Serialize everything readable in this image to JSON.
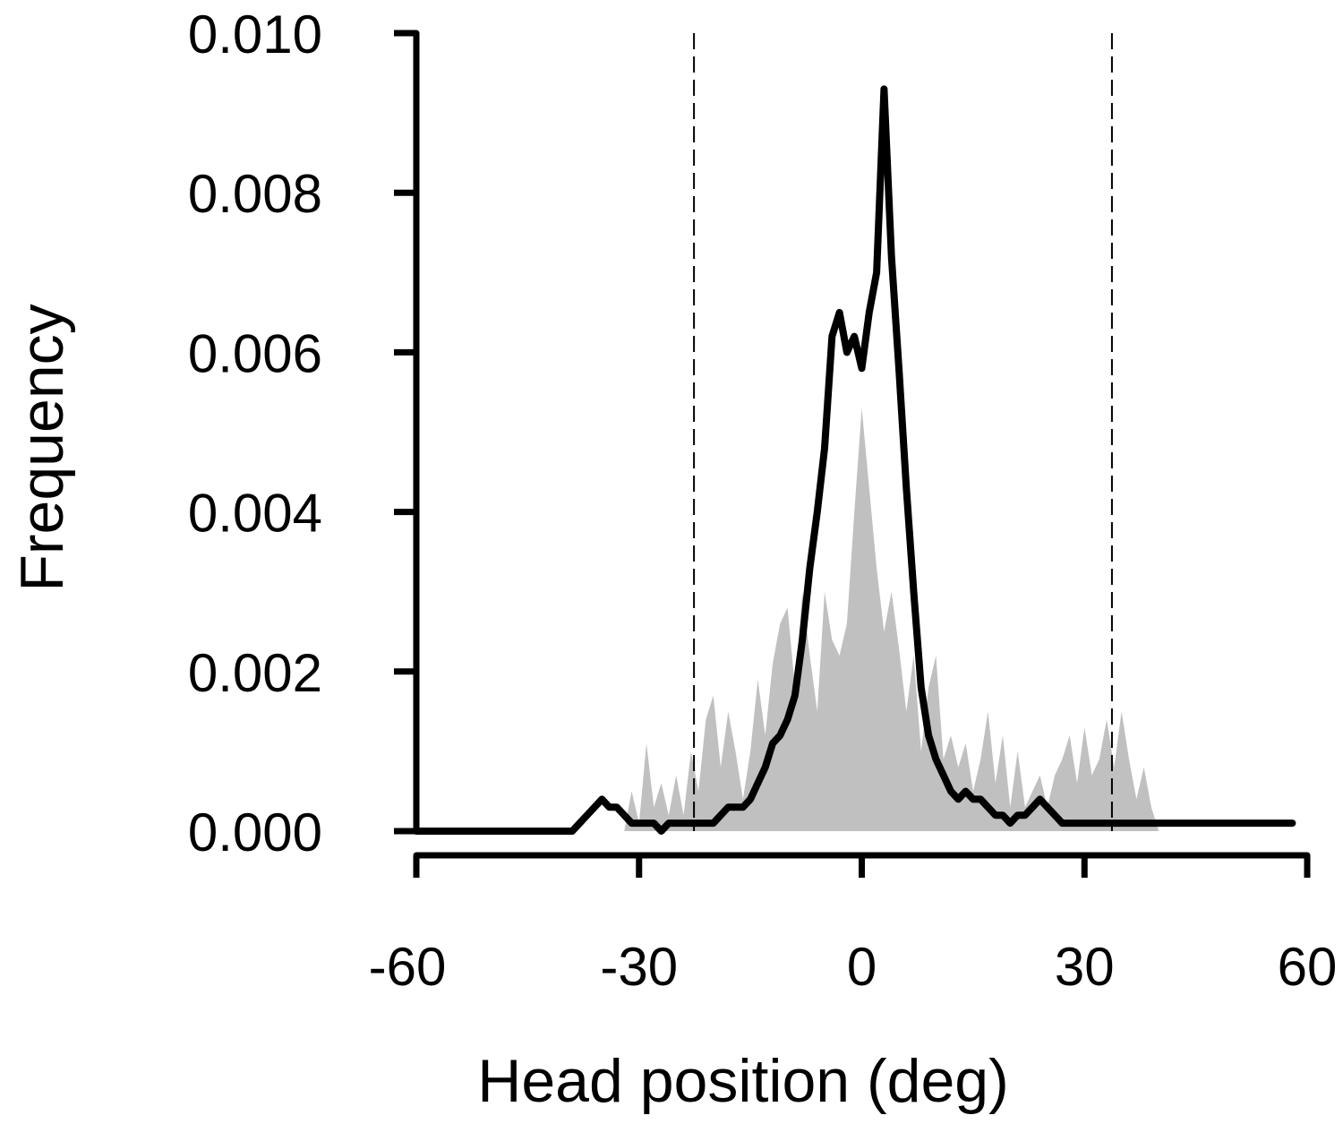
{
  "chart_data": {
    "type": "line",
    "xlabel": "Head position (deg)",
    "ylabel": "Frequency",
    "xlim": [
      -60,
      60
    ],
    "xticks": [
      -60,
      -30,
      0,
      30,
      60
    ],
    "ylim": [
      0,
      0.01
    ],
    "yticks": [
      {
        "value": 0,
        "label": "0.000"
      },
      {
        "value": 0.002,
        "label": "0.002"
      },
      {
        "value": 0.004,
        "label": "0.004"
      },
      {
        "value": 0.006,
        "label": "0.006"
      },
      {
        "value": 0.008,
        "label": "0.008"
      },
      {
        "value": 0.01,
        "label": "0.010"
      }
    ],
    "reference_lines": [
      -22.6,
      33.7
    ],
    "series": [
      {
        "kind": "area",
        "color": "#c0c0c0",
        "x": [
          -32,
          -31,
          -30,
          -29,
          -28,
          -27,
          -26,
          -25,
          -24,
          -23,
          -22,
          -21,
          -20,
          -19,
          -18,
          -17,
          -16,
          -15,
          -14,
          -13,
          -12,
          -11,
          -10,
          -9,
          -8,
          -7,
          -6,
          -5,
          -4,
          -3,
          -2,
          -1,
          0,
          1,
          2,
          3,
          4,
          5,
          6,
          7,
          8,
          9,
          10,
          11,
          12,
          13,
          14,
          15,
          16,
          17,
          18,
          19,
          20,
          21,
          22,
          23,
          24,
          25,
          26,
          27,
          28,
          29,
          30,
          31,
          32,
          33,
          34,
          35,
          36,
          37,
          38,
          39,
          40
        ],
        "values": [
          0,
          0.0005,
          0.0001,
          0.0011,
          0.0003,
          0.0006,
          0.0002,
          0.0007,
          0.0002,
          0.001,
          0.0005,
          0.0014,
          0.0017,
          0.0008,
          0.0015,
          0.001,
          0.0004,
          0.001,
          0.0019,
          0.0012,
          0.0021,
          0.0026,
          0.0028,
          0.0018,
          0.003,
          0.0022,
          0.0015,
          0.003,
          0.0024,
          0.0022,
          0.0026,
          0.004,
          0.0053,
          0.0043,
          0.0033,
          0.0025,
          0.003,
          0.0023,
          0.0015,
          0.0022,
          0.001,
          0.0018,
          0.0022,
          0.0009,
          0.0012,
          0.0008,
          0.0011,
          0.0005,
          0.0009,
          0.0015,
          0.0006,
          0.0012,
          0.0003,
          0.001,
          0.0003,
          0.0005,
          0.0007,
          0.0003,
          0.0007,
          0.0009,
          0.0012,
          0.0006,
          0.0013,
          0.0007,
          0.0009,
          0.0014,
          0.0008,
          0.0015,
          0.0009,
          0.0004,
          0.0008,
          0.0003,
          0
        ]
      },
      {
        "kind": "line",
        "color": "#000000",
        "x": [
          -60,
          -59,
          -58,
          -57,
          -56,
          -55,
          -54,
          -53,
          -52,
          -51,
          -50,
          -49,
          -48,
          -47,
          -46,
          -45,
          -44,
          -43,
          -42,
          -41,
          -40,
          -39,
          -38,
          -37,
          -36,
          -35,
          -34,
          -33,
          -32,
          -31,
          -30,
          -29,
          -28,
          -27,
          -26,
          -25,
          -24,
          -23,
          -22,
          -21,
          -20,
          -19,
          -18,
          -17,
          -16,
          -15,
          -14,
          -13,
          -12,
          -11,
          -10,
          -9,
          -8,
          -7,
          -6,
          -5,
          -4,
          -3,
          -2,
          -1,
          0,
          1,
          2,
          3,
          4,
          5,
          6,
          7,
          8,
          9,
          10,
          11,
          12,
          13,
          14,
          15,
          16,
          17,
          18,
          19,
          20,
          21,
          22,
          23,
          24,
          25,
          26,
          27,
          28,
          29,
          30,
          31,
          32,
          33,
          34,
          35,
          36,
          37,
          38,
          39,
          40,
          41,
          42,
          43,
          44,
          45,
          46,
          47,
          48,
          49,
          50,
          51,
          52,
          53,
          54,
          55,
          56,
          57,
          58
        ],
        "values": [
          0,
          0,
          0,
          0,
          0,
          0,
          0,
          0,
          0,
          0,
          0,
          0,
          0,
          0,
          0,
          0,
          0,
          0,
          0,
          0,
          0,
          0,
          0.0001,
          0.0002,
          0.0003,
          0.0004,
          0.0003,
          0.0003,
          0.0002,
          0.0001,
          0.0001,
          0.0001,
          0.0001,
          0,
          0.0001,
          0.0001,
          0.0001,
          0.0001,
          0.0001,
          0.0001,
          0.0001,
          0.0002,
          0.0003,
          0.0003,
          0.0003,
          0.0004,
          0.0006,
          0.0008,
          0.0011,
          0.0012,
          0.0014,
          0.0017,
          0.0024,
          0.0033,
          0.004,
          0.0048,
          0.0062,
          0.0065,
          0.006,
          0.0062,
          0.0058,
          0.0065,
          0.007,
          0.0093,
          0.0072,
          0.0058,
          0.0043,
          0.003,
          0.0018,
          0.0012,
          0.0009,
          0.0007,
          0.0005,
          0.0004,
          0.0005,
          0.0004,
          0.0004,
          0.0003,
          0.0002,
          0.0002,
          0.0001,
          0.0002,
          0.0002,
          0.0003,
          0.0004,
          0.0003,
          0.0002,
          0.0001,
          0.0001,
          0.0001,
          0.0001,
          0.0001,
          0.0001,
          0.0001,
          0.0001,
          0.0001,
          0.0001,
          0.0001,
          0.0001,
          0.0001,
          0.0001,
          0.0001,
          0.0001,
          0.0001,
          0.0001,
          0.0001,
          0.0001,
          0.0001,
          0.0001,
          0.0001,
          0.0001,
          0.0001,
          0.0001,
          0.0001,
          0.0001,
          0.0001,
          0.0001,
          0.0001,
          0.0001
        ]
      }
    ]
  }
}
